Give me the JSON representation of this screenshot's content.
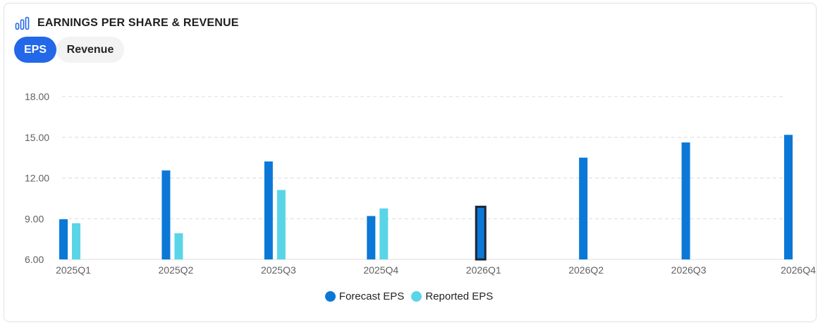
{
  "header": {
    "icon": "bar-chart-icon",
    "title": "EARNINGS PER SHARE & REVENUE"
  },
  "tabs": [
    {
      "label": "EPS",
      "active": true
    },
    {
      "label": "Revenue",
      "active": false
    }
  ],
  "colors": {
    "forecast": "#0b78d8",
    "reported": "#5ad5e8",
    "accent": "#2268e8",
    "highlight_border": "#1b2633"
  },
  "chart_data": {
    "type": "bar",
    "categories": [
      "2025Q1",
      "2025Q2",
      "2025Q3",
      "2025Q4",
      "2026Q1",
      "2026Q2",
      "2026Q3",
      "2026Q4"
    ],
    "series": [
      {
        "name": "Forecast EPS",
        "values": [
          8.96,
          12.56,
          13.22,
          9.2,
          9.88,
          13.5,
          14.62,
          15.18
        ]
      },
      {
        "name": "Reported EPS",
        "values": [
          8.67,
          7.93,
          11.12,
          9.76,
          null,
          null,
          null,
          null
        ]
      }
    ],
    "ylim": [
      6,
      18
    ],
    "yticks": [
      "6.00",
      "9.00",
      "12.00",
      "15.00",
      "18.00"
    ],
    "highlighted_category": "2026Q1",
    "grid": true,
    "legend": "bottom-center",
    "title": "",
    "xlabel": "",
    "ylabel": ""
  }
}
